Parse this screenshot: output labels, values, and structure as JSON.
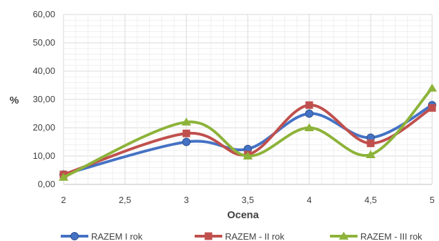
{
  "chart_data": {
    "type": "line",
    "x": [
      2,
      2.5,
      3,
      3.5,
      4,
      4.5,
      5
    ],
    "x_tick_labels": [
      "2",
      "2,5",
      "3",
      "3,5",
      "4",
      "4,5",
      "5"
    ],
    "y_tick_labels": [
      "0,00",
      "10,00",
      "20,00",
      "30,00",
      "40,00",
      "50,00",
      "60,00"
    ],
    "xlabel": "Ocena",
    "ylabel": "%",
    "xlim": [
      2,
      5
    ],
    "ylim": [
      0,
      60
    ],
    "grid": true,
    "smooth": true,
    "legend_position": "bottom",
    "series": [
      {
        "name": "RAZEM I rok",
        "color": "#4472c4",
        "marker": "circle",
        "points": [
          [
            2,
            3.5
          ],
          [
            3,
            15.0
          ],
          [
            3.5,
            12.5
          ],
          [
            4,
            25.0
          ],
          [
            4.5,
            16.5
          ],
          [
            5,
            28.0
          ]
        ]
      },
      {
        "name": "RAZEM - II rok",
        "color": "#c0504d",
        "marker": "square",
        "points": [
          [
            2,
            3.5
          ],
          [
            3,
            18.0
          ],
          [
            3.5,
            10.5
          ],
          [
            4,
            28.0
          ],
          [
            4.5,
            14.5
          ],
          [
            5,
            27.0
          ]
        ]
      },
      {
        "name": "RAZEM - III rok",
        "color": "#8db33a",
        "marker": "triangle",
        "points": [
          [
            2,
            2.5
          ],
          [
            3,
            22.0
          ],
          [
            3.5,
            10.0
          ],
          [
            4,
            20.0
          ],
          [
            4.5,
            10.5
          ],
          [
            5,
            34.0
          ]
        ]
      }
    ]
  }
}
